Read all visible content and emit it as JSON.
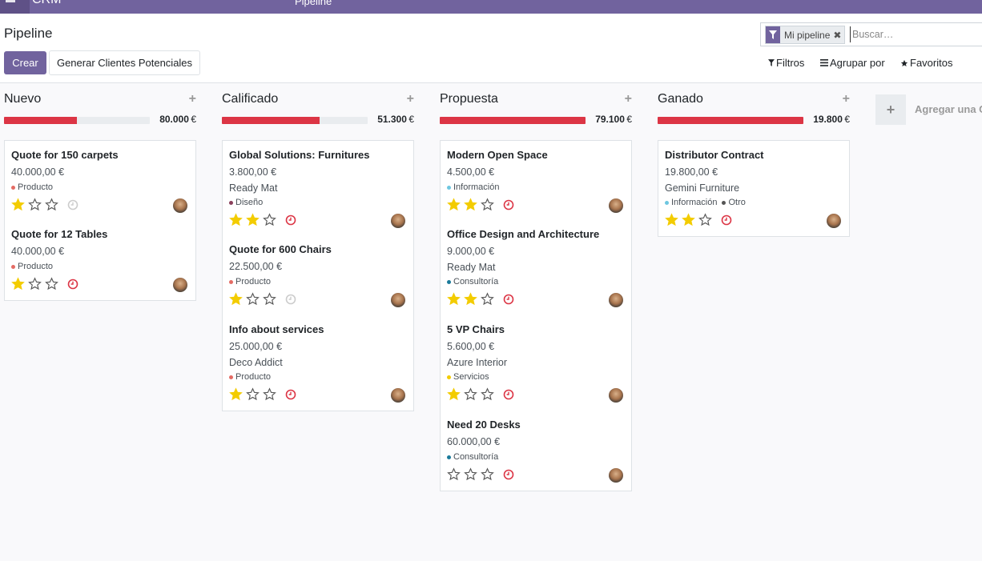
{
  "topbar": {
    "brand": "CRM",
    "menu_item": "Pipeline"
  },
  "page": {
    "title": "Pipeline"
  },
  "buttons": {
    "create": "Crear",
    "generate": "Generar Clientes Potenciales"
  },
  "search": {
    "facet": "Mi pipeline",
    "placeholder": "Buscar…"
  },
  "toolbar": {
    "filters": "Filtros",
    "group_by": "Agrupar por",
    "favorites": "Favoritos"
  },
  "add_column": {
    "plus": "+",
    "label": "Agregar una Columna"
  },
  "colors": {
    "accent": "#71639e",
    "bar_red": "#dc3545",
    "star": "#f3cc00",
    "overdue": "#dc3545"
  },
  "tag_colors": {
    "Producto": "#e46b64",
    "Diseño": "#8a3f5b",
    "Información": "#6ec7e0",
    "Consultoría": "#1a7a9a",
    "Servicios": "#f3cc00",
    "Otro": "#555555"
  },
  "columns": [
    {
      "name": "Nuevo",
      "plus": "+",
      "total": "80.000",
      "currency": "€",
      "progress": 0.5,
      "cards": [
        {
          "title": "Quote for 150 carpets",
          "amount": "40.000,00 €",
          "partner": "",
          "tags": [
            "Producto"
          ],
          "stars": 1,
          "activity": "none"
        },
        {
          "title": "Quote for 12 Tables",
          "amount": "40.000,00 €",
          "partner": "",
          "tags": [
            "Producto"
          ],
          "stars": 1,
          "activity": "overdue"
        }
      ]
    },
    {
      "name": "Calificado",
      "plus": "+",
      "total": "51.300",
      "currency": "€",
      "progress": 0.67,
      "cards": [
        {
          "title": "Global Solutions: Furnitures",
          "amount": "3.800,00 €",
          "partner": "Ready Mat",
          "tags": [
            "Diseño"
          ],
          "stars": 2,
          "activity": "overdue"
        },
        {
          "title": "Quote for 600 Chairs",
          "amount": "22.500,00 €",
          "partner": "",
          "tags": [
            "Producto"
          ],
          "stars": 1,
          "activity": "none"
        },
        {
          "title": "Info about services",
          "amount": "25.000,00 €",
          "partner": "Deco Addict",
          "tags": [
            "Producto"
          ],
          "stars": 1,
          "activity": "overdue"
        }
      ]
    },
    {
      "name": "Propuesta",
      "plus": "+",
      "total": "79.100",
      "currency": "€",
      "progress": 1.0,
      "cards": [
        {
          "title": "Modern Open Space",
          "amount": "4.500,00 €",
          "partner": "",
          "tags": [
            "Información"
          ],
          "stars": 2,
          "activity": "overdue"
        },
        {
          "title": "Office Design and Architecture",
          "amount": "9.000,00 €",
          "partner": "Ready Mat",
          "tags": [
            "Consultoría"
          ],
          "stars": 2,
          "activity": "overdue"
        },
        {
          "title": "5 VP Chairs",
          "amount": "5.600,00 €",
          "partner": "Azure Interior",
          "tags": [
            "Servicios"
          ],
          "stars": 1,
          "activity": "overdue"
        },
        {
          "title": "Need 20 Desks",
          "amount": "60.000,00 €",
          "partner": "",
          "tags": [
            "Consultoría"
          ],
          "stars": 0,
          "activity": "overdue"
        }
      ]
    },
    {
      "name": "Ganado",
      "plus": "+",
      "total": "19.800",
      "currency": "€",
      "progress": 1.0,
      "cards": [
        {
          "title": "Distributor Contract",
          "amount": "19.800,00 €",
          "partner": "Gemini Furniture",
          "tags": [
            "Información",
            "Otro"
          ],
          "stars": 2,
          "activity": "overdue"
        }
      ]
    }
  ]
}
